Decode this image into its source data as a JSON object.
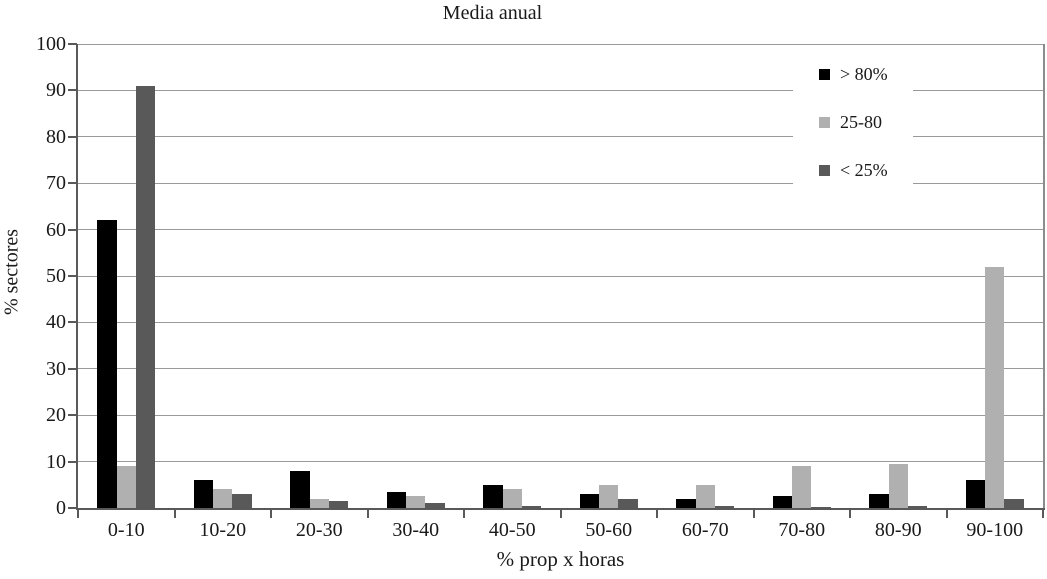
{
  "chart_data": {
    "type": "bar",
    "title": "Media anual",
    "xlabel": "% prop x horas",
    "ylabel": "% sectores",
    "categories": [
      "0-10",
      "10-20",
      "20-30",
      "30-40",
      "40-50",
      "50-60",
      "60-70",
      "70-80",
      "80-90",
      "90-100"
    ],
    "series": [
      {
        "name": "> 80%",
        "color": "#000000",
        "values": [
          62,
          6,
          8,
          3.5,
          5,
          3,
          2,
          2.5,
          3,
          6
        ]
      },
      {
        "name": "25-80",
        "color": "#b0b0b0",
        "values": [
          9,
          4,
          2,
          2.5,
          4,
          5,
          5,
          9,
          9.5,
          52
        ]
      },
      {
        "name": "< 25%",
        "color": "#595959",
        "values": [
          91,
          3,
          1.5,
          1,
          0.5,
          2,
          0.5,
          0.2,
          0.5,
          2
        ]
      }
    ],
    "ylim": [
      0,
      100
    ],
    "yticks": [
      0,
      10,
      20,
      30,
      40,
      50,
      60,
      70,
      80,
      90,
      100
    ],
    "grid": true,
    "legend_position": "top-right",
    "grid_color": "#999999",
    "axis_color": "#595959"
  }
}
